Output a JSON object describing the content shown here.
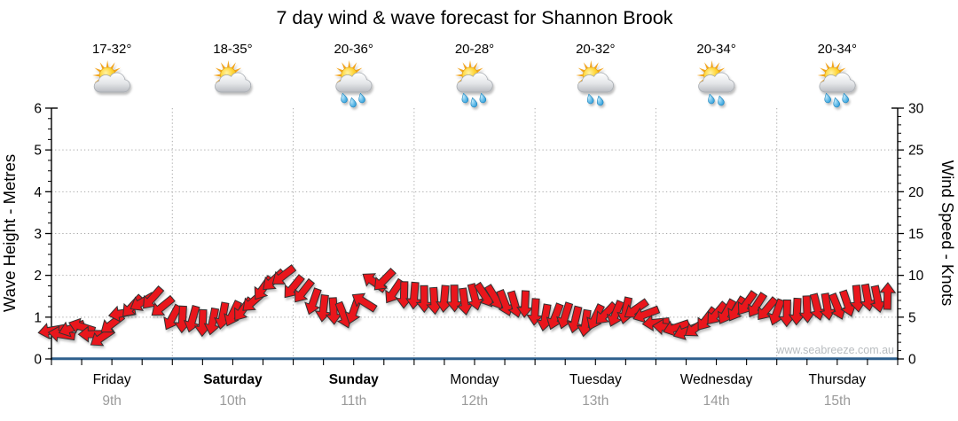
{
  "title": "7 day wind & wave forecast for Shannon Brook",
  "watermark": "www.seabreeze.com.au",
  "left_axis": {
    "title": "Wave Height - Metres",
    "unit": "m",
    "min": 0,
    "max": 6,
    "major_step": 1,
    "minor_step": 0.25,
    "gridlines": [
      1,
      2,
      3,
      4,
      5
    ]
  },
  "right_axis": {
    "title": "Wind Speed - Knots",
    "unit": "knots",
    "min": 0,
    "max": 30,
    "major_step": 5,
    "minor_step": 1
  },
  "days": [
    {
      "name": "Friday",
      "date": "9th",
      "temp": "17-32°",
      "icon": "sun-cloud-icon",
      "raindrops": 0,
      "weekend": false
    },
    {
      "name": "Saturday",
      "date": "10th",
      "temp": "18-35°",
      "icon": "sun-cloud-icon",
      "raindrops": 0,
      "weekend": true
    },
    {
      "name": "Sunday",
      "date": "11th",
      "temp": "20-36°",
      "icon": "sun-cloud-rain-icon",
      "raindrops": 3,
      "weekend": true
    },
    {
      "name": "Monday",
      "date": "12th",
      "temp": "20-28°",
      "icon": "sun-cloud-rain-icon",
      "raindrops": 3,
      "weekend": false
    },
    {
      "name": "Tuesday",
      "date": "13th",
      "temp": "20-32°",
      "icon": "sun-cloud-rain-icon",
      "raindrops": 2,
      "weekend": false
    },
    {
      "name": "Wednesday",
      "date": "14th",
      "temp": "20-34°",
      "icon": "sun-cloud-rain-icon",
      "raindrops": 2,
      "weekend": false
    },
    {
      "name": "Thursday",
      "date": "15th",
      "temp": "20-34°",
      "icon": "sun-cloud-rain-icon",
      "raindrops": 3,
      "weekend": false
    }
  ],
  "colors": {
    "arrow_red": "#e9131b",
    "arrow_outline": "#333333",
    "grid": "#a9a9a9",
    "axis": "#000000",
    "x_axis_blue": "#2f608d",
    "date_gray": "#9a9a9a",
    "watermark_gray": "#b9bdc0",
    "sun_yellow": "#fdc825",
    "ray_orange": "#f2a41c",
    "cloud_gray": "#c9ccd1",
    "drop_blue": "#2aa3df"
  },
  "chart_data": {
    "type": "line",
    "title": "7 day wind & wave forecast for Shannon Brook",
    "x_axis": {
      "hours_range": [
        0,
        168
      ],
      "tick_every_hours": 6,
      "day_span_hours": 24,
      "day_labels": [
        "Friday 9th",
        "Saturday 10th",
        "Sunday 11th",
        "Monday 12th",
        "Tuesday 13th",
        "Wednesday 14th",
        "Thursday 15th"
      ]
    },
    "left_y": {
      "label": "Wave Height - Metres",
      "range": [
        0,
        6
      ],
      "ticks": [
        0,
        1,
        2,
        3,
        4,
        5,
        6
      ]
    },
    "right_y": {
      "label": "Wind Speed - Knots",
      "range": [
        0,
        30
      ],
      "ticks": [
        0,
        5,
        10,
        15,
        20,
        25,
        30
      ]
    },
    "grid": {
      "horizontal_dotted_at_metres": [
        1,
        2,
        3,
        4,
        5
      ],
      "vertical_dotted_at_day_boundaries": true,
      "legend": "none"
    },
    "wave_height": {
      "unit": "metres",
      "value_m": 0,
      "shape": "flat blue line at 0 across all 7 days"
    },
    "wind_arrows": {
      "unit": "knots",
      "direction_convention": "degrees the arrow points toward; 0=up, 90=right, 180=down, 270=left",
      "samples": [
        [
          0,
          3.4,
          260
        ],
        [
          2,
          3.2,
          275
        ],
        [
          4,
          3.6,
          255
        ],
        [
          6,
          3.6,
          285
        ],
        [
          8,
          3.1,
          268
        ],
        [
          10,
          2.8,
          240
        ],
        [
          12,
          4.0,
          228
        ],
        [
          14,
          5.3,
          262
        ],
        [
          16,
          6.5,
          225
        ],
        [
          18,
          6.9,
          235
        ],
        [
          20,
          7.0,
          226
        ],
        [
          22,
          6.2,
          230
        ],
        [
          24,
          5.2,
          205
        ],
        [
          26,
          4.7,
          188
        ],
        [
          28,
          4.5,
          192
        ],
        [
          30,
          4.4,
          182
        ],
        [
          32,
          4.7,
          195
        ],
        [
          34,
          5.0,
          186
        ],
        [
          36,
          5.2,
          208
        ],
        [
          38,
          6.1,
          218
        ],
        [
          40,
          7.0,
          224
        ],
        [
          42,
          8.2,
          220
        ],
        [
          44,
          9.3,
          226
        ],
        [
          46,
          10.2,
          230
        ],
        [
          48,
          8.6,
          224
        ],
        [
          50,
          7.8,
          214
        ],
        [
          52,
          6.9,
          200
        ],
        [
          54,
          6.3,
          190
        ],
        [
          56,
          5.6,
          172
        ],
        [
          58,
          5.0,
          162
        ],
        [
          60,
          5.9,
          200
        ],
        [
          62,
          7.0,
          298
        ],
        [
          64,
          9.0,
          310
        ],
        [
          66,
          9.3,
          222
        ],
        [
          68,
          8.3,
          212
        ],
        [
          70,
          7.7,
          186
        ],
        [
          72,
          7.3,
          180
        ],
        [
          74,
          7.2,
          181
        ],
        [
          76,
          7.2,
          179
        ],
        [
          78,
          7.1,
          180
        ],
        [
          80,
          7.0,
          183
        ],
        [
          82,
          7.0,
          172
        ],
        [
          84,
          7.6,
          162
        ],
        [
          86,
          7.4,
          152
        ],
        [
          88,
          7.2,
          146
        ],
        [
          90,
          6.9,
          158
        ],
        [
          92,
          6.6,
          168
        ],
        [
          94,
          6.3,
          178
        ],
        [
          96,
          5.6,
          186
        ],
        [
          98,
          5.2,
          192
        ],
        [
          100,
          5.0,
          196
        ],
        [
          102,
          4.9,
          202
        ],
        [
          104,
          4.8,
          192
        ],
        [
          106,
          4.5,
          186
        ],
        [
          108,
          4.8,
          210
        ],
        [
          110,
          5.2,
          220
        ],
        [
          112,
          5.6,
          202
        ],
        [
          114,
          5.9,
          196
        ],
        [
          116,
          5.7,
          230
        ],
        [
          118,
          5.3,
          252
        ],
        [
          120,
          4.6,
          265
        ],
        [
          122,
          3.8,
          272
        ],
        [
          124,
          3.5,
          256
        ],
        [
          126,
          3.4,
          246
        ],
        [
          128,
          4.0,
          232
        ],
        [
          130,
          4.6,
          222
        ],
        [
          132,
          5.2,
          216
        ],
        [
          134,
          5.8,
          210
        ],
        [
          136,
          6.1,
          214
        ],
        [
          138,
          6.4,
          210
        ],
        [
          140,
          6.3,
          216
        ],
        [
          142,
          6.2,
          220
        ],
        [
          144,
          5.6,
          196
        ],
        [
          146,
          5.2,
          186
        ],
        [
          148,
          5.7,
          180
        ],
        [
          150,
          6.2,
          176
        ],
        [
          152,
          6.1,
          170
        ],
        [
          154,
          6.0,
          166
        ],
        [
          156,
          6.4,
          160
        ],
        [
          158,
          6.8,
          164
        ],
        [
          160,
          7.0,
          170
        ],
        [
          162,
          7.2,
          174
        ],
        [
          164,
          7.4,
          168
        ],
        [
          166,
          7.6,
          358
        ]
      ]
    }
  }
}
